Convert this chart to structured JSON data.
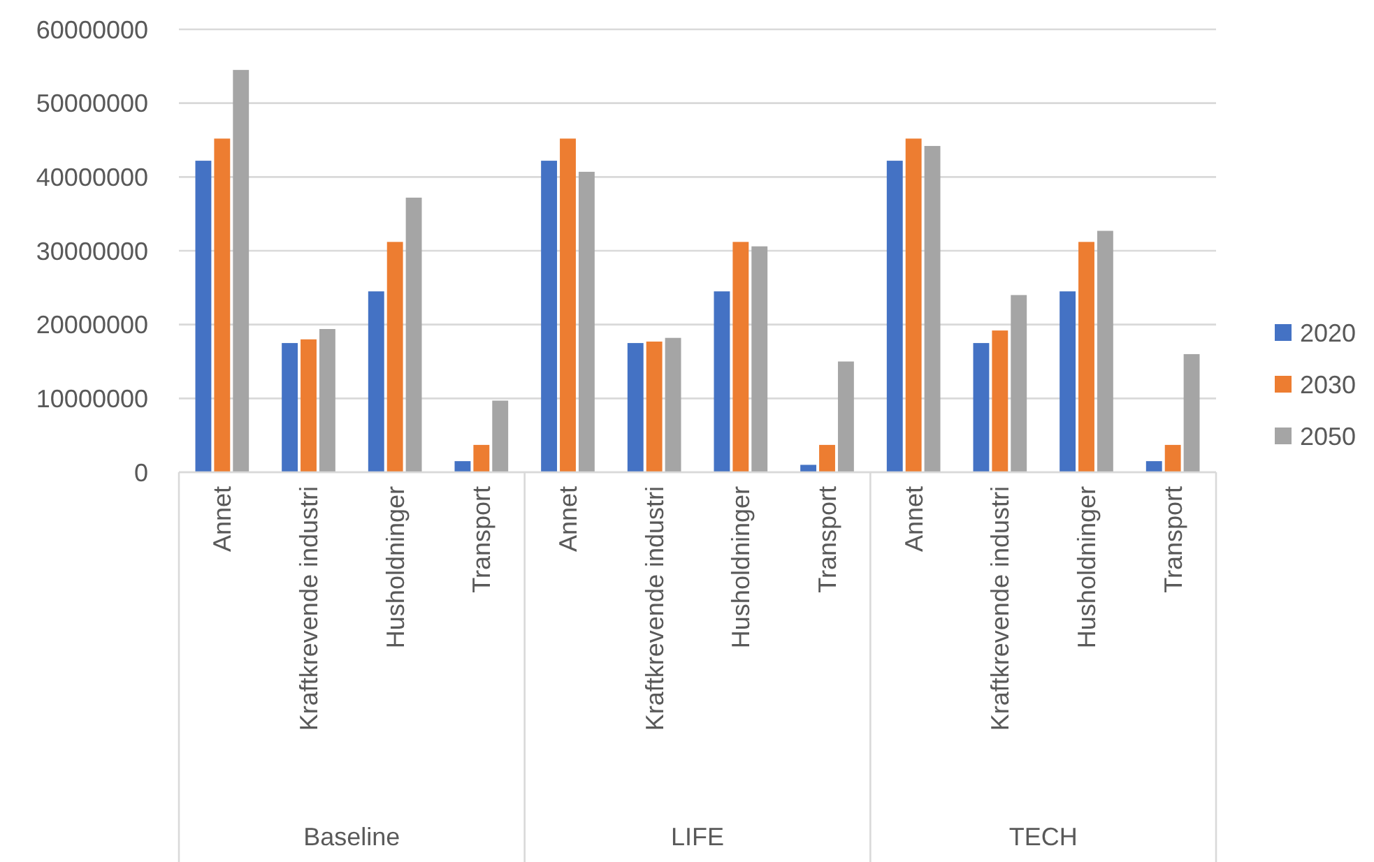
{
  "chart_data": {
    "type": "bar",
    "categories": [
      "Annet",
      "Kraftkrevende industri",
      "Husholdninger",
      "Transport",
      "Annet",
      "Kraftkrevende industri",
      "Husholdninger",
      "Transport",
      "Annet",
      "Kraftkrevende industri",
      "Husholdninger",
      "Transport"
    ],
    "series": [
      {
        "name": "2020",
        "color": "#4472c4",
        "values": [
          42200000,
          17500000,
          24500000,
          1500000,
          42200000,
          17500000,
          24500000,
          1000000,
          42200000,
          17500000,
          24500000,
          1500000
        ]
      },
      {
        "name": "2030",
        "color": "#ed7d31",
        "values": [
          45200000,
          18000000,
          31200000,
          3700000,
          45200000,
          17700000,
          31200000,
          3700000,
          45200000,
          19200000,
          31200000,
          3700000
        ]
      },
      {
        "name": "2050",
        "color": "#a5a5a5",
        "values": [
          54500000,
          19400000,
          37200000,
          9700000,
          40700000,
          18200000,
          30600000,
          15000000,
          44200000,
          24000000,
          32700000,
          16000000
        ]
      }
    ],
    "annotations": [
      "Baseline",
      "LIFE",
      "TECH"
    ],
    "ylim": [
      0,
      60000000
    ],
    "yticks": [
      0,
      10000000,
      20000000,
      30000000,
      40000000,
      50000000,
      60000000
    ],
    "grid": "y",
    "legend": "right"
  }
}
